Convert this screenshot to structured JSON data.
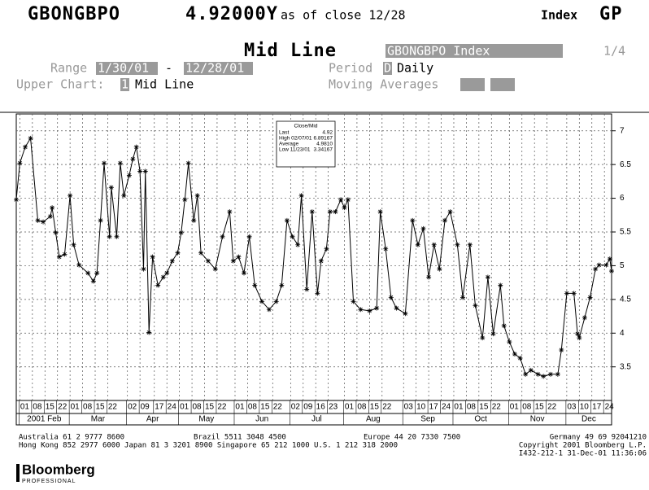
{
  "header": {
    "ticker": "GBONGBPO",
    "price": "4.92000Y",
    "as_of": "as of close 12/28",
    "kind": "Index",
    "code": "GP"
  },
  "panel": {
    "title": "Mid Line",
    "security": "GBONGBPO Index",
    "page": "1/4",
    "range_label": "Range",
    "range_start": "1/30/01",
    "range_sep": "-",
    "range_end": "12/28/01",
    "period_label": "Period",
    "period_code": "D",
    "period": "Daily",
    "upper_label": "Upper Chart:",
    "upper_code": "1",
    "upper": "Mid Line",
    "ma_label": "Moving Averages"
  },
  "chart_data": {
    "type": "line",
    "color": "#000000",
    "grid": true,
    "legend": {
      "title": "Close/Mid",
      "rows": [
        [
          "Last",
          "4.92"
        ],
        [
          "High 02/07/01",
          "6.89167"
        ],
        [
          "Average",
          "4.9810"
        ],
        [
          "Low 11/23/01",
          "3.34167"
        ]
      ]
    },
    "x": [
      30,
      32,
      35,
      38,
      42,
      45,
      49,
      50,
      52,
      54,
      57,
      60,
      62,
      65,
      70,
      73,
      75,
      77,
      79,
      82,
      83,
      86,
      88,
      90,
      93,
      95,
      97,
      99,
      101,
      102,
      104,
      106,
      109,
      112,
      114,
      117,
      120,
      122,
      124,
      126,
      129,
      131,
      133,
      137,
      141,
      145,
      149,
      151,
      154,
      157,
      160,
      163,
      167,
      171,
      175,
      178,
      181,
      184,
      187,
      189,
      192,
      195,
      198,
      200,
      203,
      205,
      208,
      211,
      213,
      215,
      218,
      222,
      227,
      231,
      233,
      236,
      239,
      242,
      247,
      251,
      254,
      257,
      260,
      263,
      266,
      269,
      272,
      276,
      279,
      283,
      286,
      290,
      293,
      296,
      300,
      302,
      305,
      308,
      311,
      314,
      317,
      321,
      324,
      328,
      332,
      334,
      337,
      341,
      343,
      344,
      347,
      350,
      353,
      355,
      359,
      361,
      362
    ],
    "values": [
      5.98,
      6.52,
      6.76,
      6.89,
      5.67,
      5.65,
      5.73,
      5.86,
      5.49,
      5.13,
      5.17,
      6.04,
      5.31,
      5.01,
      4.89,
      4.77,
      4.89,
      5.67,
      6.52,
      5.43,
      6.16,
      5.43,
      6.52,
      6.04,
      6.34,
      6.58,
      6.76,
      6.4,
      4.95,
      6.4,
      4.01,
      5.13,
      4.71,
      4.83,
      4.89,
      5.07,
      5.19,
      5.49,
      5.98,
      6.52,
      5.67,
      6.04,
      5.19,
      5.07,
      4.95,
      5.43,
      5.8,
      5.07,
      5.13,
      4.89,
      5.43,
      4.71,
      4.47,
      4.35,
      4.47,
      4.71,
      5.67,
      5.43,
      5.31,
      6.04,
      4.65,
      5.8,
      4.59,
      5.07,
      5.25,
      5.8,
      5.8,
      5.98,
      5.86,
      5.98,
      4.47,
      4.35,
      4.33,
      4.37,
      5.8,
      5.25,
      4.53,
      4.37,
      4.29,
      5.67,
      5.31,
      5.55,
      4.83,
      5.31,
      4.95,
      5.67,
      5.8,
      5.31,
      4.53,
      5.31,
      4.41,
      3.93,
      4.83,
      3.99,
      4.71,
      4.11,
      3.87,
      3.69,
      3.63,
      3.39,
      3.45,
      3.39,
      3.36,
      3.39,
      3.39,
      3.75,
      4.59,
      4.59,
      3.99,
      3.93,
      4.23,
      4.53,
      4.95,
      5.01,
      5.01,
      5.1,
      4.92
    ],
    "xlim": [
      30,
      362
    ],
    "ylim": [
      3.05,
      7.25
    ],
    "yticks": [
      3.5,
      4,
      4.5,
      5,
      5.5,
      6,
      6.5,
      7
    ],
    "xticks": [
      {
        "value": 32,
        "label": "01"
      },
      {
        "value": 39,
        "label": "08"
      },
      {
        "value": 46,
        "label": "15"
      },
      {
        "value": 53,
        "label": "22"
      },
      {
        "value": 60,
        "label": "01"
      },
      {
        "value": 67,
        "label": "08"
      },
      {
        "value": 74,
        "label": "15"
      },
      {
        "value": 81,
        "label": "22"
      },
      {
        "value": 92,
        "label": "02"
      },
      {
        "value": 99,
        "label": "09"
      },
      {
        "value": 107,
        "label": "17"
      },
      {
        "value": 114,
        "label": "24"
      },
      {
        "value": 121,
        "label": "01"
      },
      {
        "value": 128,
        "label": "08"
      },
      {
        "value": 135,
        "label": "15"
      },
      {
        "value": 142,
        "label": "22"
      },
      {
        "value": 152,
        "label": "01"
      },
      {
        "value": 159,
        "label": "08"
      },
      {
        "value": 166,
        "label": "15"
      },
      {
        "value": 173,
        "label": "22"
      },
      {
        "value": 183,
        "label": "02"
      },
      {
        "value": 190,
        "label": "09"
      },
      {
        "value": 197,
        "label": "16"
      },
      {
        "value": 204,
        "label": "23"
      },
      {
        "value": 213,
        "label": "01"
      },
      {
        "value": 220,
        "label": "08"
      },
      {
        "value": 227,
        "label": "15"
      },
      {
        "value": 234,
        "label": "22"
      },
      {
        "value": 246,
        "label": "03"
      },
      {
        "value": 253,
        "label": "10"
      },
      {
        "value": 260,
        "label": "17"
      },
      {
        "value": 267,
        "label": "24"
      },
      {
        "value": 274,
        "label": "01"
      },
      {
        "value": 281,
        "label": "08"
      },
      {
        "value": 288,
        "label": "15"
      },
      {
        "value": 295,
        "label": "22"
      },
      {
        "value": 305,
        "label": "01"
      },
      {
        "value": 312,
        "label": "08"
      },
      {
        "value": 319,
        "label": "15"
      },
      {
        "value": 326,
        "label": "22"
      },
      {
        "value": 337,
        "label": "03"
      },
      {
        "value": 344,
        "label": "10"
      },
      {
        "value": 351,
        "label": "17"
      },
      {
        "value": 358,
        "label": "24"
      }
    ],
    "month_labels": [
      "2001 Feb",
      "Mar",
      "Apr",
      "May",
      "Jun",
      "Jul",
      "Aug",
      "Sep",
      "Oct",
      "Nov",
      "Dec"
    ]
  },
  "footer": {
    "line1": [
      "Australia 61 2 9777 8600",
      "Brazil 5511 3048 4500",
      "Europe 44 20 7330 7500",
      "Germany 49 69 92041210"
    ],
    "line2": "Hong Kong 852 2977 6000 Japan 81 3 3201 8900 Singapore 65 212 1000 U.S. 1 212 318 2000",
    "copyright": "Copyright 2001 Bloomberg L.P.",
    "stamp": "I432-212-1 31-Dec-01 11:36:06",
    "logo": "Bloomberg",
    "logo_sub": "PROFESSIONAL"
  }
}
